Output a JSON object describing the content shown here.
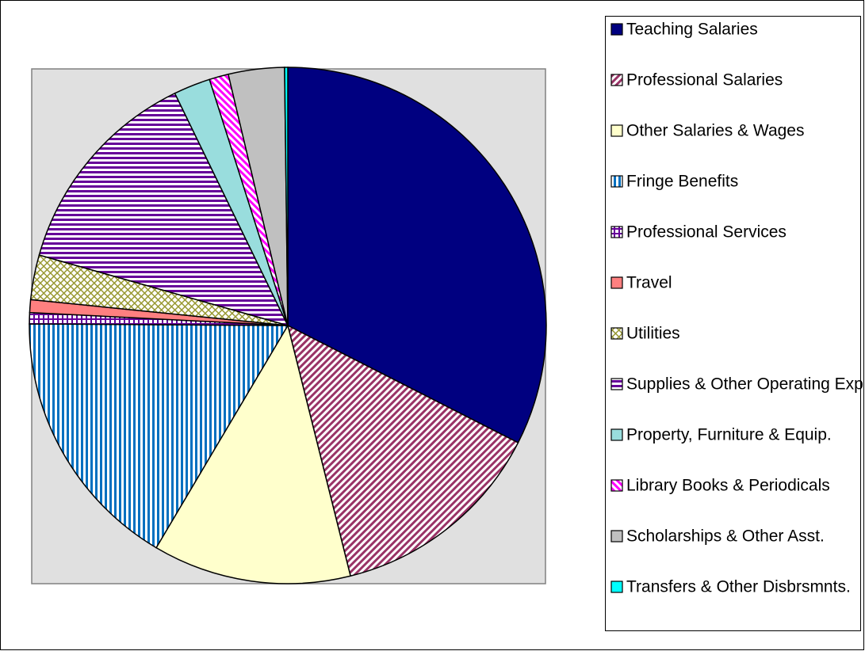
{
  "chart_data": {
    "type": "pie",
    "categories": [
      "Teaching Salaries",
      "Professional Salaries",
      "Other Salaries & Wages",
      "Fringe Benefits",
      "Professional Services",
      "Travel",
      "Utilities",
      "Supplies & Other Operating Exp",
      "Property, Furniture & Equip.",
      "Library Books & Periodicals",
      "Scholarships & Other Asst.",
      "Transfers & Other Disbrsmnts."
    ],
    "values": [
      32.5,
      13.6,
      12.4,
      16.6,
      0.7,
      0.8,
      2.8,
      13.4,
      2.3,
      1.2,
      3.5,
      0.2
    ],
    "colors": [
      "#000080",
      "#993366",
      "#ffffcc",
      "#0070c0",
      "#660099",
      "#ff8080",
      "#999933",
      "#660099",
      "#99dddd",
      "#ff00ff",
      "#c0c0c0",
      "#00ffff"
    ],
    "patterns": [
      "solid",
      "diag",
      "solid",
      "vstripe",
      "grid",
      "solid",
      "cross",
      "hstripe",
      "solid",
      "diag2",
      "solid",
      "solid"
    ],
    "start_angle": 0,
    "direction": "clockwise"
  }
}
